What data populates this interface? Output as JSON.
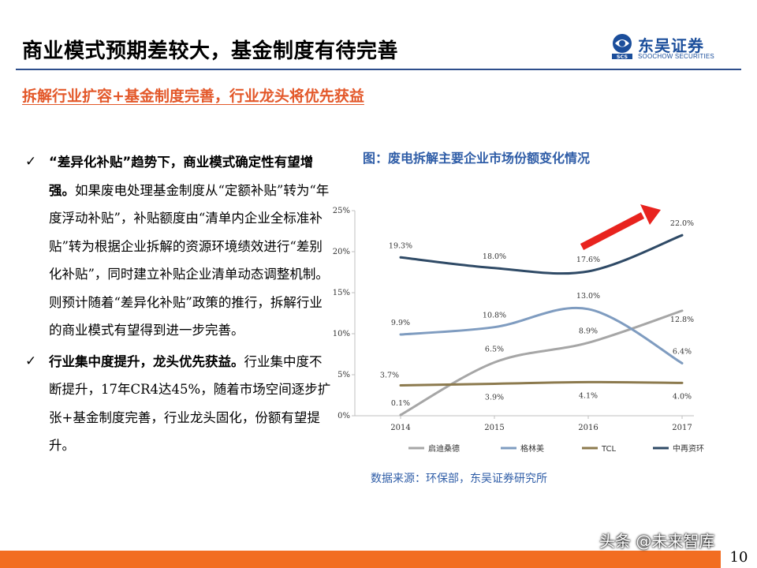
{
  "header": {
    "title": "商业模式预期差较大，基金制度有待完善",
    "logo_cn": "东吴证券",
    "logo_en": "SOOCHOW SECURITIES",
    "logo_mark": "SCS"
  },
  "subtitle": "拆解行业扩容+基金制度完善，行业龙头将优先获益",
  "bullets": [
    {
      "bold": "“差异化补贴”趋势下，商业模式确定性有望增强。",
      "text": "如果废电处理基金制度从“定额补贴”转为“年度浮动补贴”，补贴额度由“清单内企业全标准补贴”转为根据企业拆解的资源环境绩效进行“差别化补贴”，同时建立补贴企业清单动态调整机制。则预计随着“差异化补贴”政策的推行，拆解行业的商业模式有望得到进一步完善。"
    },
    {
      "bold": "行业集中度提升，龙头优先获益。",
      "text": "行业集中度不断提升，17年CR4达45%，随着市场空间逐步扩张+基金制度完善，行业龙头固化，份额有望提升。"
    }
  ],
  "chart_title": "图：废电拆解主要企业市场份额变化情况",
  "source": "数据来源：环保部，东吴证券研究所",
  "page_number": "10",
  "watermark": "头条 @未来智库",
  "chart_data": {
    "type": "line",
    "categories": [
      "2014",
      "2015",
      "2016",
      "2017"
    ],
    "ylim": [
      0,
      25
    ],
    "yticks": [
      "0%",
      "5%",
      "10%",
      "15%",
      "20%",
      "25%"
    ],
    "ytick_values": [
      0,
      5,
      10,
      15,
      20,
      25
    ],
    "series": [
      {
        "name": "启迪桑德",
        "color": "#a6a6a6",
        "values": [
          0.1,
          6.5,
          8.9,
          12.8
        ],
        "labels": [
          "0.1%",
          "6.5%",
          "8.9%",
          "12.8%"
        ]
      },
      {
        "name": "格林美",
        "color": "#7f9cc0",
        "values": [
          9.9,
          10.8,
          13.0,
          6.4
        ],
        "labels": [
          "9.9%",
          "10.8%",
          "13.0%",
          "6.4%"
        ]
      },
      {
        "name": "TCL",
        "color": "#8c7a4e",
        "values": [
          3.7,
          3.9,
          4.1,
          4.0
        ],
        "labels": [
          "3.7%",
          "3.9%",
          "4.1%",
          "4.0%"
        ]
      },
      {
        "name": "中再资环",
        "color": "#2f4a66",
        "values": [
          19.3,
          18.0,
          17.6,
          22.0
        ],
        "labels": [
          "19.3%",
          "18.0%",
          "17.6%",
          "22.0%"
        ]
      }
    ],
    "arrow_color": "#e8231e",
    "legend_position": "bottom"
  }
}
